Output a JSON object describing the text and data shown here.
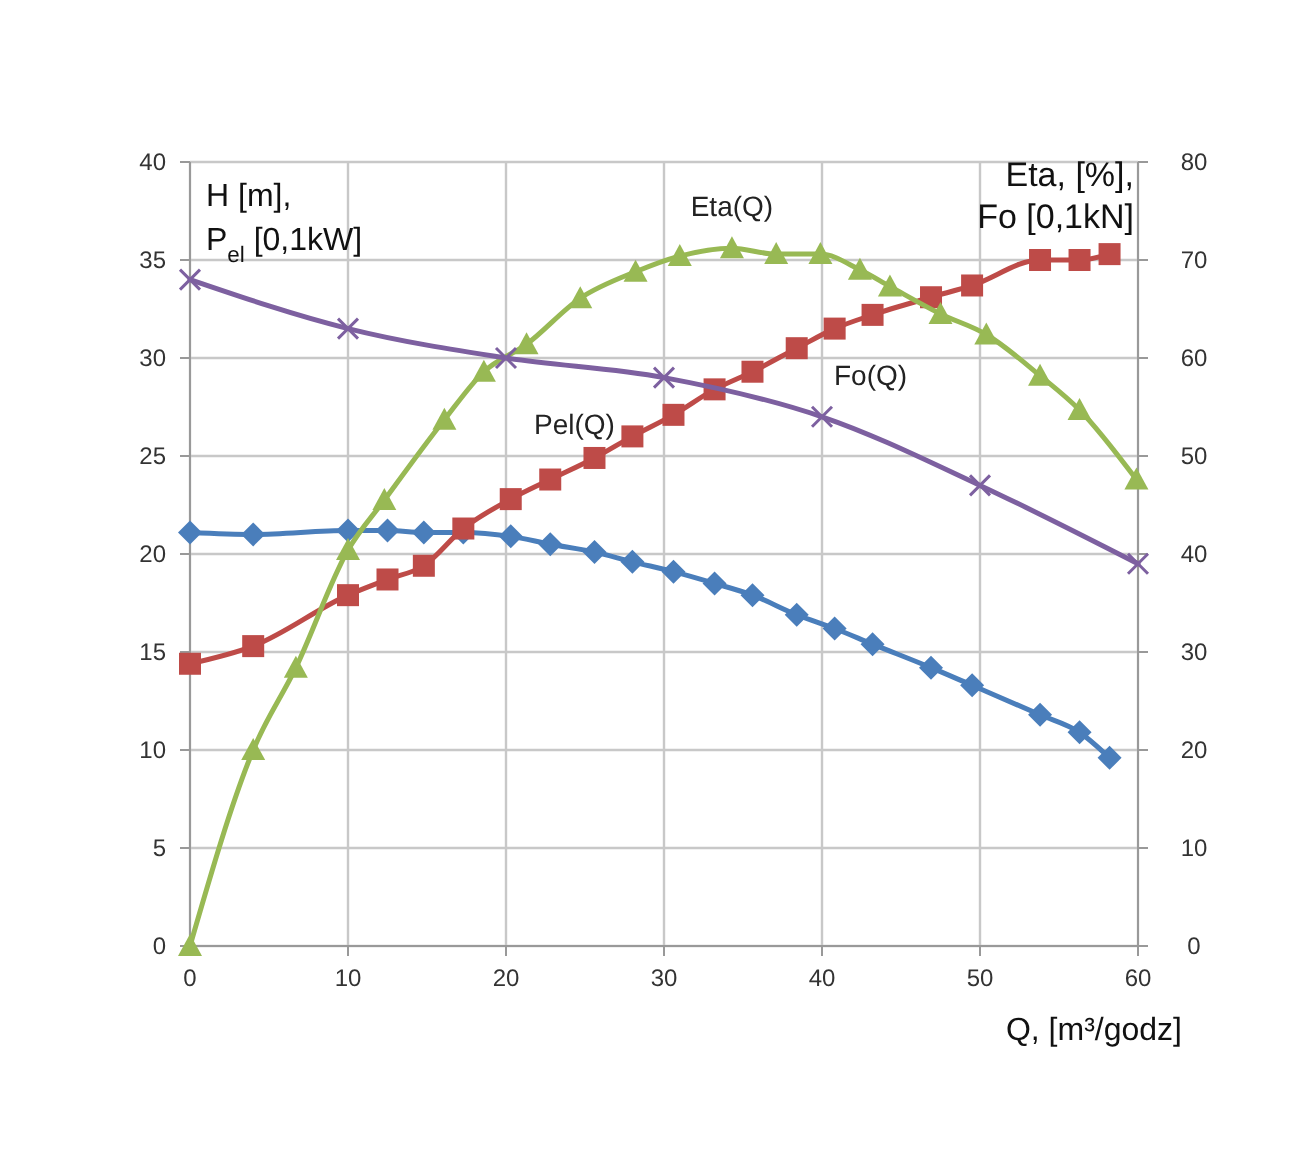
{
  "chart_data": {
    "type": "line",
    "xlabel": "Q, [m³/godz]",
    "ylabel": "H [m],\nP$_{el}$  [0,1kW]",
    "y2label": "Eta, [%],\nFo [0,1kN]",
    "xlim": [
      0,
      60
    ],
    "xticks": [
      0,
      10,
      20,
      30,
      40,
      50,
      60
    ],
    "ylim": [
      0,
      40
    ],
    "yticks": [
      0,
      5,
      10,
      15,
      20,
      25,
      30,
      35,
      40
    ],
    "y2lim": [
      0,
      80
    ],
    "y2ticks": [
      0,
      10,
      20,
      30,
      40,
      50,
      60,
      70,
      80
    ],
    "grid": true,
    "line_style": "solid",
    "series": [
      {
        "color": "#4a7ebb",
        "marker": "diamond",
        "x": [
          0,
          4,
          10,
          12.5,
          14.8,
          17.3,
          20.3,
          22.8,
          25.6,
          28,
          30.6,
          33.2,
          35.6,
          38.4,
          40.8,
          43.2,
          46.9,
          49.5,
          53.8,
          56.3,
          58.2
        ],
        "values": [
          21.1,
          21,
          21.2,
          21.2,
          21.1,
          21.1,
          20.9,
          20.5,
          20.1,
          19.6,
          19.1,
          18.5,
          17.9,
          16.9,
          16.2,
          15.4,
          14.2,
          13.3,
          11.8,
          10.9,
          9.6
        ]
      },
      {
        "name": "Pel(Q)",
        "color": "#be4b48",
        "marker": "square",
        "x": [
          0,
          4,
          10,
          12.5,
          14.8,
          17.3,
          20.3,
          22.8,
          25.6,
          28,
          30.6,
          33.2,
          35.6,
          38.4,
          40.8,
          43.2,
          46.9,
          49.5,
          53.8,
          56.3,
          58.2
        ],
        "values": [
          14.4,
          15.3,
          17.9,
          18.7,
          19.4,
          21.3,
          22.8,
          23.8,
          24.9,
          26,
          27.1,
          28.4,
          29.3,
          30.5,
          31.5,
          32.2,
          33.1,
          33.7,
          35,
          35,
          35.3
        ]
      },
      {
        "name": "Eta(Q)",
        "color": "#98b954",
        "marker": "triangle",
        "axis": "y2",
        "x": [
          0,
          4,
          6.7,
          10,
          12.3,
          16.1,
          18.6,
          21.3,
          24.7,
          28.2,
          31,
          34.3,
          37.1,
          39.9,
          42.4,
          44.3,
          47.5,
          50.4,
          53.8,
          56.3,
          59.9
        ],
        "values": [
          0,
          20,
          28.4,
          40.4,
          45.5,
          53.7,
          58.6,
          61.4,
          66.1,
          68.8,
          70.4,
          71.2,
          70.6,
          70.6,
          69,
          67.3,
          64.5,
          62.4,
          58.2,
          54.7,
          47.6
        ]
      },
      {
        "name": "Fo(Q)",
        "color": "#7d60a0",
        "marker": "cross",
        "axis": "y2",
        "x": [
          0,
          10,
          20,
          30,
          40,
          50,
          60
        ],
        "values": [
          68,
          63,
          60,
          58,
          54,
          47,
          39
        ]
      }
    ]
  }
}
